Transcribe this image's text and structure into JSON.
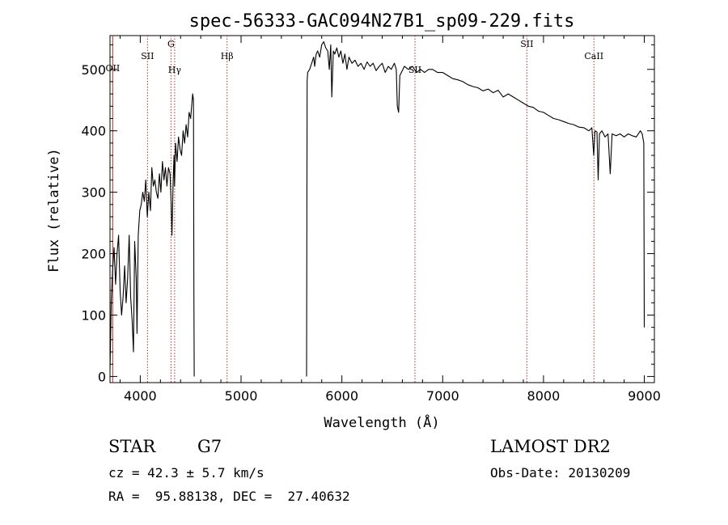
{
  "chart_data": {
    "type": "line",
    "title": "spec-56333-GAC094N27B1_sp09-229.fits",
    "xlabel": "Wavelength (Å)",
    "ylabel": "Flux (relative)",
    "xlim": [
      3700,
      9100
    ],
    "ylim": [
      -10,
      555
    ],
    "xticks": [
      4000,
      5000,
      6000,
      7000,
      8000,
      9000
    ],
    "yticks": [
      0,
      100,
      200,
      300,
      400,
      500
    ],
    "grid": false,
    "series": [
      {
        "segments": [
          {
            "x": [
              3700,
              3712,
              3725,
              3740,
              3755,
              3770,
              3785,
              3800,
              3815,
              3830,
              3845,
              3860,
              3875,
              3890,
              3905,
              3920,
              3933,
              3945,
              3960,
              3968,
              3980,
              3995,
              4010,
              4025,
              4040,
              4055,
              4070,
              4085,
              4101,
              4115,
              4130,
              4145,
              4160,
              4175,
              4190,
              4205,
              4220,
              4235,
              4250,
              4265,
              4280,
              4295,
              4305,
              4315,
              4325,
              4335,
              4340,
              4350,
              4365,
              4380,
              4395,
              4410,
              4425,
              4440,
              4455,
              4470,
              4485,
              4500,
              4510,
              4520,
              4528,
              4532,
              4535
            ],
            "y": [
              10,
              120,
              170,
              210,
              150,
              200,
              230,
              140,
              100,
              130,
              180,
              120,
              160,
              230,
              130,
              90,
              40,
              220,
              160,
              70,
              230,
              270,
              280,
              300,
              285,
              320,
              260,
              300,
              270,
              340,
              310,
              320,
              300,
              290,
              330,
              300,
              350,
              320,
              340,
              310,
              340,
              330,
              290,
              230,
              310,
              360,
              310,
              380,
              350,
              390,
              370,
              360,
              400,
              380,
              410,
              390,
              430,
              420,
              440,
              460,
              450,
              140,
              0
            ]
          },
          {
            "x": [
              5650,
              5655,
              5660,
              5680,
              5700,
              5720,
              5730,
              5745,
              5760,
              5780,
              5800,
              5820,
              5840,
              5860,
              5875,
              5890,
              5900,
              5915,
              5930,
              5950,
              5970,
              5990,
              6010,
              6030,
              6050,
              6070,
              6100,
              6130,
              6160,
              6190,
              6220,
              6250,
              6280,
              6310,
              6340,
              6370,
              6400,
              6430,
              6460,
              6490,
              6520,
              6540,
              6550,
              6563,
              6575,
              6590,
              6620,
              6660,
              6700,
              6740,
              6780,
              6820,
              6860,
              6900,
              6950,
              7000,
              7050,
              7100,
              7150,
              7200,
              7250,
              7300,
              7350,
              7400,
              7450,
              7500,
              7550,
              7600,
              7650,
              7700,
              7750,
              7800,
              7850,
              7900,
              7950,
              8000,
              8050,
              8100,
              8150,
              8200,
              8250,
              8300,
              8350,
              8400,
              8450,
              8480,
              8498,
              8510,
              8530,
              8542,
              8555,
              8580,
              8610,
              8640,
              8662,
              8680,
              8720,
              8760,
              8800,
              8840,
              8880,
              8920,
              8960,
              8980,
              8995,
              9000
            ],
            "y": [
              0,
              480,
              495,
              500,
              510,
              520,
              505,
              525,
              530,
              520,
              540,
              545,
              535,
              530,
              500,
              540,
              455,
              530,
              525,
              535,
              520,
              530,
              510,
              525,
              500,
              520,
              510,
              515,
              505,
              510,
              500,
              512,
              505,
              510,
              498,
              505,
              510,
              495,
              505,
              500,
              510,
              500,
              440,
              430,
              490,
              495,
              505,
              500,
              505,
              495,
              500,
              495,
              500,
              500,
              495,
              495,
              490,
              485,
              483,
              480,
              475,
              472,
              470,
              465,
              468,
              462,
              466,
              455,
              460,
              455,
              450,
              445,
              440,
              438,
              432,
              430,
              425,
              420,
              418,
              415,
              412,
              410,
              406,
              405,
              400,
              405,
              360,
              400,
              398,
              320,
              395,
              400,
              390,
              395,
              330,
              395,
              392,
              395,
              390,
              395,
              392,
              390,
              400,
              395,
              380,
              80
            ]
          }
        ]
      }
    ],
    "lines": [
      {
        "wavelength": 3727,
        "label": "OII",
        "style": "solid"
      },
      {
        "wavelength": 4072,
        "label": "SII",
        "style": "dotted"
      },
      {
        "wavelength": 4305,
        "label": "G",
        "style": "dotted"
      },
      {
        "wavelength": 4341,
        "label": "Hγ",
        "style": "dotted"
      },
      {
        "wavelength": 4861,
        "label": "Hβ",
        "style": "dotted"
      },
      {
        "wavelength": 6725,
        "label": "SII",
        "style": "dotted"
      },
      {
        "wavelength": 7835,
        "label": "SII",
        "style": "dotted"
      },
      {
        "wavelength": 8500,
        "label": "CaII",
        "style": "dotted"
      }
    ],
    "colors": {
      "spectrum": "#000000",
      "line_marker": "#b03030"
    }
  },
  "info": {
    "class_label": "STAR",
    "subclass": "G7",
    "survey": "LAMOST DR2",
    "cz": "cz = 42.3 ± 5.7 km/s",
    "obs_date": "Obs-Date: 20130209",
    "coords": "RA =  95.88138, DEC =  27.40632"
  }
}
